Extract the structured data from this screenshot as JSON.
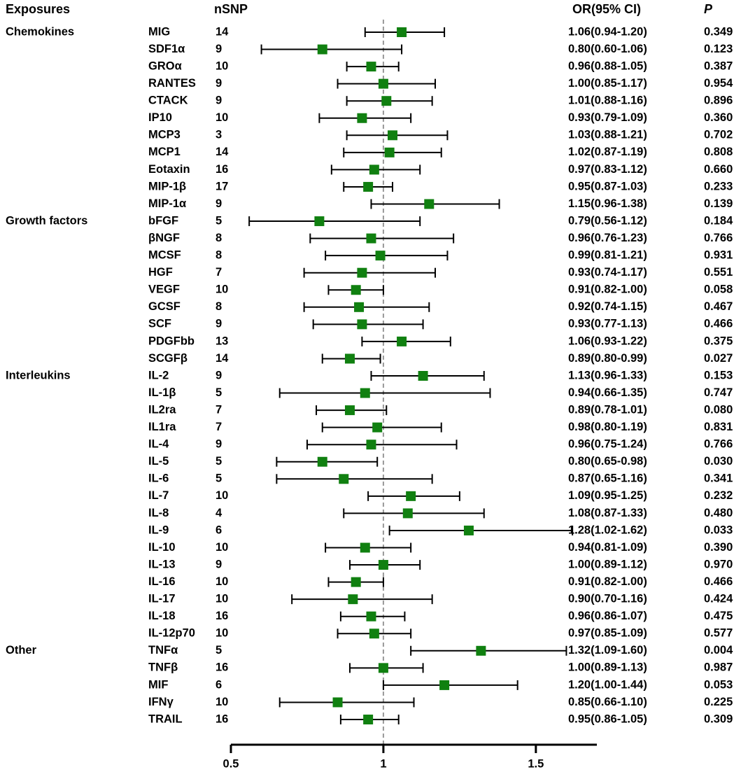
{
  "headers": {
    "exposures": "Exposures",
    "nsnp": "nSNP",
    "or_ci": "OR(95% CI)",
    "p": "P"
  },
  "colors": {
    "marker": "#108010",
    "significant": "#e8403a",
    "text": "#000000",
    "reference_line": "#999999"
  },
  "chart_data": {
    "type": "forest",
    "title": "",
    "xlabel": "",
    "ylabel": "",
    "xlim": [
      0.5,
      1.7
    ],
    "x_ticks": [
      0.5,
      1,
      1.5
    ],
    "x_tick_labels": [
      "0.5",
      "1",
      "1.5"
    ],
    "reference_value": 1,
    "groups": [
      {
        "name": "Chemokines",
        "rows": [
          {
            "label": "MIG",
            "nsnp": "14",
            "or": 1.06,
            "lo": 0.94,
            "hi": 1.2,
            "ci_text": "1.06(0.94-1.20)",
            "p": "0.349",
            "significant": false
          },
          {
            "label": "SDF1α",
            "nsnp": "9",
            "or": 0.8,
            "lo": 0.6,
            "hi": 1.06,
            "ci_text": "0.80(0.60-1.06)",
            "p": "0.123",
            "significant": false
          },
          {
            "label": "GROα",
            "nsnp": "10",
            "or": 0.96,
            "lo": 0.88,
            "hi": 1.05,
            "ci_text": "0.96(0.88-1.05)",
            "p": "0.387",
            "significant": false
          },
          {
            "label": "RANTES",
            "nsnp": "9",
            "or": 1.0,
            "lo": 0.85,
            "hi": 1.17,
            "ci_text": "1.00(0.85-1.17)",
            "p": "0.954",
            "significant": false
          },
          {
            "label": "CTACK",
            "nsnp": "9",
            "or": 1.01,
            "lo": 0.88,
            "hi": 1.16,
            "ci_text": "1.01(0.88-1.16)",
            "p": "0.896",
            "significant": false
          },
          {
            "label": "IP10",
            "nsnp": "10",
            "or": 0.93,
            "lo": 0.79,
            "hi": 1.09,
            "ci_text": "0.93(0.79-1.09)",
            "p": "0.360",
            "significant": false
          },
          {
            "label": "MCP3",
            "nsnp": "3",
            "or": 1.03,
            "lo": 0.88,
            "hi": 1.21,
            "ci_text": "1.03(0.88-1.21)",
            "p": "0.702",
            "significant": false
          },
          {
            "label": "MCP1",
            "nsnp": "14",
            "or": 1.02,
            "lo": 0.87,
            "hi": 1.19,
            "ci_text": "1.02(0.87-1.19)",
            "p": "0.808",
            "significant": false
          },
          {
            "label": "Eotaxin",
            "nsnp": "16",
            "or": 0.97,
            "lo": 0.83,
            "hi": 1.12,
            "ci_text": "0.97(0.83-1.12)",
            "p": "0.660",
            "significant": false
          },
          {
            "label": "MIP-1β",
            "nsnp": "17",
            "or": 0.95,
            "lo": 0.87,
            "hi": 1.03,
            "ci_text": "0.95(0.87-1.03)",
            "p": "0.233",
            "significant": false
          },
          {
            "label": "MIP-1α",
            "nsnp": "9",
            "or": 1.15,
            "lo": 0.96,
            "hi": 1.38,
            "ci_text": "1.15(0.96-1.38)",
            "p": "0.139",
            "significant": false
          }
        ]
      },
      {
        "name": "Growth factors",
        "rows": [
          {
            "label": "bFGF",
            "nsnp": "5",
            "or": 0.79,
            "lo": 0.56,
            "hi": 1.12,
            "ci_text": "0.79(0.56-1.12)",
            "p": "0.184",
            "significant": false
          },
          {
            "label": "βNGF",
            "nsnp": "8",
            "or": 0.96,
            "lo": 0.76,
            "hi": 1.23,
            "ci_text": "0.96(0.76-1.23)",
            "p": "0.766",
            "significant": false
          },
          {
            "label": "MCSF",
            "nsnp": "8",
            "or": 0.99,
            "lo": 0.81,
            "hi": 1.21,
            "ci_text": "0.99(0.81-1.21)",
            "p": "0.931",
            "significant": false
          },
          {
            "label": "HGF",
            "nsnp": "7",
            "or": 0.93,
            "lo": 0.74,
            "hi": 1.17,
            "ci_text": "0.93(0.74-1.17)",
            "p": "0.551",
            "significant": false
          },
          {
            "label": "VEGF",
            "nsnp": "10",
            "or": 0.91,
            "lo": 0.82,
            "hi": 1.0,
            "ci_text": "0.91(0.82-1.00)",
            "p": "0.058",
            "significant": false
          },
          {
            "label": "GCSF",
            "nsnp": "8",
            "or": 0.92,
            "lo": 0.74,
            "hi": 1.15,
            "ci_text": "0.92(0.74-1.15)",
            "p": "0.467",
            "significant": false
          },
          {
            "label": "SCF",
            "nsnp": "9",
            "or": 0.93,
            "lo": 0.77,
            "hi": 1.13,
            "ci_text": "0.93(0.77-1.13)",
            "p": "0.466",
            "significant": false
          },
          {
            "label": "PDGFbb",
            "nsnp": "13",
            "or": 1.06,
            "lo": 0.93,
            "hi": 1.22,
            "ci_text": "1.06(0.93-1.22)",
            "p": "0.375",
            "significant": false
          },
          {
            "label": "SCGFβ",
            "nsnp": "14",
            "or": 0.89,
            "lo": 0.8,
            "hi": 0.99,
            "ci_text": "0.89(0.80-0.99)",
            "p": "0.027",
            "significant": true
          }
        ]
      },
      {
        "name": "Interleukins",
        "rows": [
          {
            "label": "IL-2",
            "nsnp": "9",
            "or": 1.13,
            "lo": 0.96,
            "hi": 1.33,
            "ci_text": "1.13(0.96-1.33)",
            "p": "0.153",
            "significant": false
          },
          {
            "label": "IL-1β",
            "nsnp": "5",
            "or": 0.94,
            "lo": 0.66,
            "hi": 1.35,
            "ci_text": "0.94(0.66-1.35)",
            "p": "0.747",
            "significant": false
          },
          {
            "label": "IL2ra",
            "nsnp": "7",
            "or": 0.89,
            "lo": 0.78,
            "hi": 1.01,
            "ci_text": "0.89(0.78-1.01)",
            "p": "0.080",
            "significant": false
          },
          {
            "label": "IL1ra",
            "nsnp": "7",
            "or": 0.98,
            "lo": 0.8,
            "hi": 1.19,
            "ci_text": "0.98(0.80-1.19)",
            "p": "0.831",
            "significant": false
          },
          {
            "label": "IL-4",
            "nsnp": "9",
            "or": 0.96,
            "lo": 0.75,
            "hi": 1.24,
            "ci_text": "0.96(0.75-1.24)",
            "p": "0.766",
            "significant": false
          },
          {
            "label": "IL-5",
            "nsnp": "5",
            "or": 0.8,
            "lo": 0.65,
            "hi": 0.98,
            "ci_text": "0.80(0.65-0.98)",
            "p": "0.030",
            "significant": true
          },
          {
            "label": "IL-6",
            "nsnp": "5",
            "or": 0.87,
            "lo": 0.65,
            "hi": 1.16,
            "ci_text": "0.87(0.65-1.16)",
            "p": "0.341",
            "significant": false
          },
          {
            "label": "IL-7",
            "nsnp": "10",
            "or": 1.09,
            "lo": 0.95,
            "hi": 1.25,
            "ci_text": "1.09(0.95-1.25)",
            "p": "0.232",
            "significant": false
          },
          {
            "label": "IL-8",
            "nsnp": "4",
            "or": 1.08,
            "lo": 0.87,
            "hi": 1.33,
            "ci_text": "1.08(0.87-1.33)",
            "p": "0.480",
            "significant": false
          },
          {
            "label": "IL-9",
            "nsnp": "6",
            "or": 1.28,
            "lo": 1.02,
            "hi": 1.62,
            "ci_text": "1.28(1.02-1.62)",
            "p": "0.033",
            "significant": true
          },
          {
            "label": "IL-10",
            "nsnp": "10",
            "or": 0.94,
            "lo": 0.81,
            "hi": 1.09,
            "ci_text": "0.94(0.81-1.09)",
            "p": "0.390",
            "significant": false
          },
          {
            "label": "IL-13",
            "nsnp": "9",
            "or": 1.0,
            "lo": 0.89,
            "hi": 1.12,
            "ci_text": "1.00(0.89-1.12)",
            "p": "0.970",
            "significant": false
          },
          {
            "label": "IL-16",
            "nsnp": "10",
            "or": 0.91,
            "lo": 0.82,
            "hi": 1.0,
            "ci_text": "0.91(0.82-1.00)",
            "p": "0.466",
            "significant": false
          },
          {
            "label": "IL-17",
            "nsnp": "10",
            "or": 0.9,
            "lo": 0.7,
            "hi": 1.16,
            "ci_text": "0.90(0.70-1.16)",
            "p": "0.424",
            "significant": false
          },
          {
            "label": "IL-18",
            "nsnp": "16",
            "or": 0.96,
            "lo": 0.86,
            "hi": 1.07,
            "ci_text": "0.96(0.86-1.07)",
            "p": "0.475",
            "significant": false
          },
          {
            "label": "IL-12p70",
            "nsnp": "10",
            "or": 0.97,
            "lo": 0.85,
            "hi": 1.09,
            "ci_text": "0.97(0.85-1.09)",
            "p": "0.577",
            "significant": false
          }
        ]
      },
      {
        "name": "Other",
        "rows": [
          {
            "label": "TNFα",
            "nsnp": "5",
            "or": 1.32,
            "lo": 1.09,
            "hi": 1.6,
            "ci_text": "1.32(1.09-1.60)",
            "p": "0.004",
            "significant": true
          },
          {
            "label": "TNFβ",
            "nsnp": "16",
            "or": 1.0,
            "lo": 0.89,
            "hi": 1.13,
            "ci_text": "1.00(0.89-1.13)",
            "p": "0.987",
            "significant": false
          },
          {
            "label": "MIF",
            "nsnp": "6",
            "or": 1.2,
            "lo": 1.0,
            "hi": 1.44,
            "ci_text": "1.20(1.00-1.44)",
            "p": "0.053",
            "significant": false
          },
          {
            "label": "IFNγ",
            "nsnp": "10",
            "or": 0.85,
            "lo": 0.66,
            "hi": 1.1,
            "ci_text": "0.85(0.66-1.10)",
            "p": "0.225",
            "significant": false
          },
          {
            "label": "TRAIL",
            "nsnp": "16",
            "or": 0.95,
            "lo": 0.86,
            "hi": 1.05,
            "ci_text": "0.95(0.86-1.05)",
            "p": "0.309",
            "significant": false
          }
        ]
      }
    ]
  }
}
